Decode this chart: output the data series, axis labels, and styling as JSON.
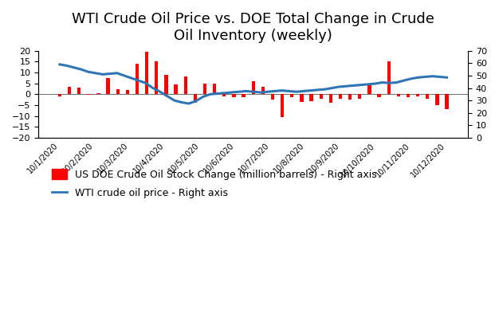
{
  "title": "WTI Crude Oil Price vs. DOE Total Change in Crude\nOil Inventory (weekly)",
  "bar_label": "US DOE Crude Oil Stock Change (million barrels) - Right axis",
  "line_label": "WTI crude oil price - Right axis",
  "x_labels": [
    "10/1/2020",
    "10/2/2020",
    "10/3/2020",
    "10/4/2020",
    "10/5/2020",
    "10/6/2020",
    "10/7/2020",
    "10/8/2020",
    "10/9/2020",
    "10/10/2020",
    "10/11/2020",
    "10/12/2020"
  ],
  "bar_values": [
    -0.8,
    3.5,
    3.0,
    -0.2,
    0.5,
    7.5,
    2.5,
    2.0,
    14.0,
    19.5,
    15.0,
    9.0,
    4.5,
    8.0,
    -4.0,
    5.0,
    5.0,
    -1.0,
    -1.5,
    -1.5,
    6.0,
    3.5,
    -2.5,
    -10.5,
    -1.5,
    -3.5,
    -3.0,
    -2.0,
    -4.0,
    -2.0,
    -2.5,
    -2.0,
    4.0,
    -1.5,
    15.0,
    -1.0,
    -1.5,
    -1.0,
    -2.0,
    -5.0,
    -7.0
  ],
  "line_values": [
    59.0,
    58.0,
    56.5,
    55.0,
    53.0,
    52.0,
    51.0,
    51.5,
    52.0,
    50.0,
    48.0,
    46.0,
    44.0,
    40.0,
    37.0,
    33.5,
    30.0,
    28.5,
    27.5,
    29.5,
    33.0,
    35.0,
    35.5,
    36.0,
    36.5,
    37.0,
    37.5,
    37.0,
    36.5,
    37.0,
    37.5,
    38.0,
    37.5,
    37.0,
    37.5,
    38.0,
    38.5,
    39.0,
    40.0,
    41.0,
    41.5,
    42.0,
    42.5,
    43.0,
    43.5,
    44.5,
    44.0,
    44.5,
    46.0,
    47.5,
    48.5,
    49.0,
    49.5,
    49.0,
    48.5
  ],
  "left_ylim": [
    -20,
    20
  ],
  "left_yticks": [
    -20,
    -15,
    -10,
    -5,
    0,
    5,
    10,
    15,
    20
  ],
  "right_ylim": [
    0,
    70
  ],
  "right_yticks": [
    0,
    10,
    20,
    30,
    40,
    50,
    60,
    70
  ],
  "bar_color": "#FF0000",
  "line_color": "#2E75B6",
  "background_color": "#FFFFFF",
  "title_fontsize": 13,
  "legend_fontsize": 9,
  "n_bars": 41,
  "n_line_points": 55
}
